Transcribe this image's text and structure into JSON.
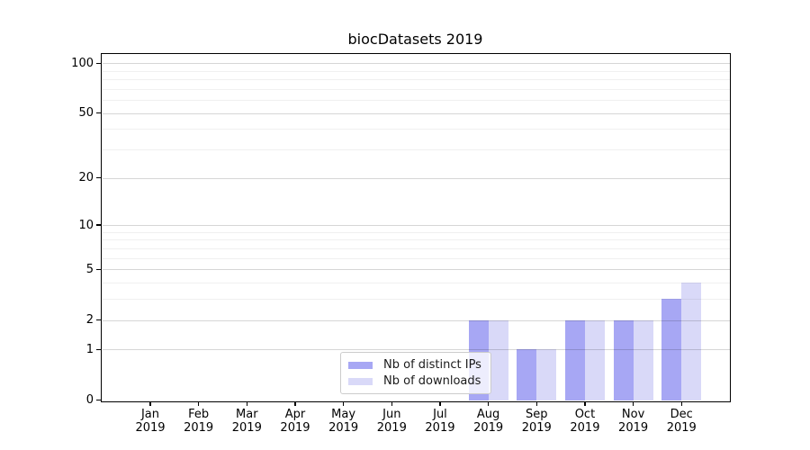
{
  "chart_data": {
    "type": "bar",
    "title": "biocDatasets 2019",
    "categories": [
      "Jan 2019",
      "Feb 2019",
      "Mar 2019",
      "Apr 2019",
      "May 2019",
      "Jun 2019",
      "Jul 2019",
      "Aug 2019",
      "Sep 2019",
      "Oct 2019",
      "Nov 2019",
      "Dec 2019"
    ],
    "x_tick_months": [
      "Jan",
      "Feb",
      "Mar",
      "Apr",
      "May",
      "Jun",
      "Jul",
      "Aug",
      "Sep",
      "Oct",
      "Nov",
      "Dec"
    ],
    "x_tick_year": "2019",
    "series": [
      {
        "name": "Nb of distinct IPs",
        "color": "#a7a7f4",
        "values": [
          0,
          0,
          0,
          0,
          0,
          0,
          0,
          2,
          1,
          2,
          2,
          3
        ]
      },
      {
        "name": "Nb of downloads",
        "color": "#d9d9f8",
        "values": [
          0,
          0,
          0,
          0,
          0,
          0,
          0,
          2,
          1,
          2,
          2,
          4
        ]
      }
    ],
    "xlabel": "",
    "ylabel": "",
    "y_scale": "log1p",
    "y_ticks": [
      0,
      1,
      2,
      5,
      10,
      20,
      50,
      100
    ],
    "y_minor_ticks": [
      3,
      4,
      6,
      7,
      8,
      9,
      30,
      40,
      60,
      70,
      80,
      90
    ],
    "ylim": [
      0,
      114
    ],
    "grid": true,
    "legend_position": "lower center"
  },
  "colors": {
    "grid_major": "rgba(0,0,0,0.16)",
    "grid_minor": "rgba(0,0,0,0.06)",
    "spine": "#000000",
    "background": "#ffffff"
  }
}
